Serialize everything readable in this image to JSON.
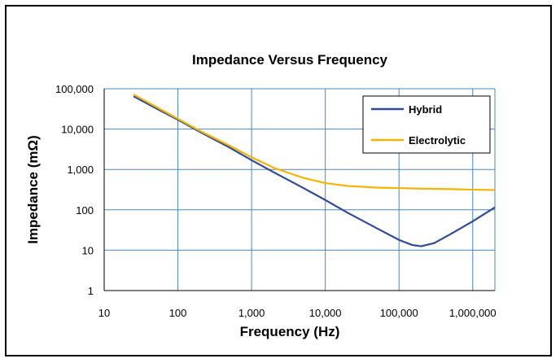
{
  "chart_data": {
    "type": "line",
    "title": "Impedance Versus Frequency",
    "xlabel": "Frequency (Hz)",
    "ylabel": "Impedance (mΩ)",
    "x_scale": "log",
    "y_scale": "log",
    "xlim": [
      10,
      2000000
    ],
    "ylim": [
      1,
      100000
    ],
    "x_ticks": [
      10,
      100,
      1000,
      10000,
      100000,
      1000000
    ],
    "x_tick_labels": [
      "10",
      "100",
      "1,000",
      "10,000",
      "100,000",
      "1,000,000"
    ],
    "y_ticks": [
      1,
      10,
      100,
      1000,
      10000,
      100000
    ],
    "y_tick_labels": [
      "1",
      "10",
      "100",
      "1,000",
      "10,000",
      "100,000"
    ],
    "grid": true,
    "legend_position": "top-right",
    "series": [
      {
        "name": "Hybrid",
        "color": "#2f4a9c",
        "points": [
          [
            25,
            65000
          ],
          [
            50,
            33000
          ],
          [
            100,
            17000
          ],
          [
            200,
            8500
          ],
          [
            500,
            3500
          ],
          [
            1000,
            1700
          ],
          [
            2000,
            850
          ],
          [
            5000,
            350
          ],
          [
            10000,
            175
          ],
          [
            20000,
            85
          ],
          [
            50000,
            35
          ],
          [
            100000,
            18
          ],
          [
            150000,
            13.5
          ],
          [
            200000,
            12.5
          ],
          [
            300000,
            15
          ],
          [
            500000,
            25
          ],
          [
            1000000,
            52
          ],
          [
            2000000,
            115
          ]
        ]
      },
      {
        "name": "Electrolytic",
        "color": "#f5b400",
        "points": [
          [
            25,
            72000
          ],
          [
            50,
            36000
          ],
          [
            100,
            18000
          ],
          [
            200,
            9000
          ],
          [
            500,
            3900
          ],
          [
            1000,
            2000
          ],
          [
            2000,
            1100
          ],
          [
            5000,
            620
          ],
          [
            10000,
            460
          ],
          [
            20000,
            390
          ],
          [
            50000,
            355
          ],
          [
            100000,
            345
          ],
          [
            200000,
            335
          ],
          [
            500000,
            325
          ],
          [
            1000000,
            315
          ],
          [
            2000000,
            310
          ]
        ]
      }
    ]
  }
}
